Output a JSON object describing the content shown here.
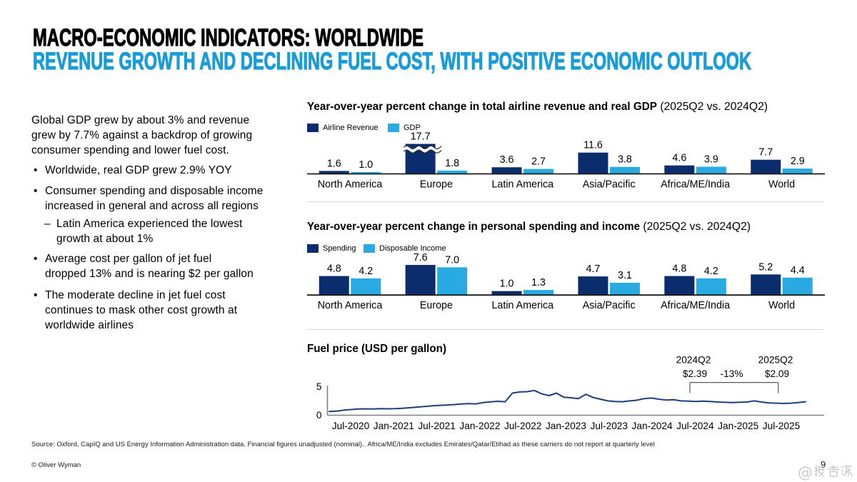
{
  "slide": {
    "title_line1": "MACRO-ECONOMIC INDICATORS: WORLDWIDE",
    "title_line2": "REVENUE GROWTH AND DECLINING FUEL COST, WITH POSITIVE ECONOMIC OUTLOOK",
    "page_number": "9",
    "copyright": "© Oliver Wyman",
    "source_note": "Source: Oxford, CapIQ and US Energy Information Administration data. Financial figures unadjusted (nominal).. Africa/ME/India excludes Emirates/Qatar/Etihad as these carriers do not report at quarterly level",
    "watermark": "@报告派"
  },
  "left_panel": {
    "intro": "Global GDP grew by about 3% and revenue\ngrew by 7.7% against a backdrop of growing\nconsumer spending and lower fuel cost.",
    "bullets": [
      {
        "level": 1,
        "text": "Worldwide, real GDP grew 2.9% YOY"
      },
      {
        "level": 1,
        "text": "Consumer spending and disposable income\nincreased in general and across all regions"
      },
      {
        "level": 2,
        "text": "Latin America experienced the lowest\ngrowth at about 1%"
      },
      {
        "level": 1,
        "text": "Average cost per gallon of jet fuel\ndropped 13% and is nearing $2 per gallon"
      },
      {
        "level": 1,
        "text": "The moderate decline in jet fuel cost\ncontinues to mask other cost growth at\nworldwide airlines"
      }
    ]
  },
  "colors": {
    "navy": "#0b2d6d",
    "light_blue": "#29abe2",
    "subtitle_blue": "#1a9cd8",
    "line_series": "#1f3e7d",
    "bar_axis": "#1a1a1a",
    "fuel_axis": "#808080",
    "bracket": "#595959",
    "separator": "#d9d9d9",
    "watermark": "#c9c9c9"
  },
  "chart_data": [
    {
      "type": "bar",
      "title_bold": "Year-over-year percent change in total airline revenue and real GDP",
      "title_regular": " (2025Q2 vs. 2024Q2)",
      "categories": [
        "North America",
        "Europe",
        "Latin America",
        "Asia/Pacific",
        "Africa/ME/India",
        "World"
      ],
      "series": [
        {
          "name": "Airline Revenue",
          "color_key": "navy",
          "values": [
            1.6,
            17.7,
            3.6,
            11.6,
            4.6,
            7.7
          ]
        },
        {
          "name": "GDP",
          "color_key": "light_blue",
          "values": [
            1.0,
            1.8,
            2.7,
            3.8,
            3.9,
            2.9
          ]
        }
      ],
      "axis_break": {
        "series": 0,
        "category_index": 1,
        "note": "Europe Airline Revenue bar truncated with break marks"
      },
      "ylim_note": "values are percent change"
    },
    {
      "type": "bar",
      "title_bold": "Year-over-year percent change in personal spending and income",
      "title_regular": " (2025Q2 vs. 2024Q2)",
      "categories": [
        "North America",
        "Europe",
        "Latin America",
        "Asia/Pacific",
        "Africa/ME/India",
        "World"
      ],
      "series": [
        {
          "name": "Spending",
          "color_key": "navy",
          "values": [
            4.8,
            7.6,
            1.0,
            4.7,
            4.8,
            5.2
          ]
        },
        {
          "name": "Disposable Income",
          "color_key": "light_blue",
          "values": [
            4.2,
            7.0,
            1.3,
            3.1,
            4.2,
            4.4
          ]
        }
      ]
    },
    {
      "type": "line",
      "title_bold": "Fuel price (USD per gallon)",
      "ylabel_ticks": [
        "0",
        "5"
      ],
      "ylim": [
        0,
        5
      ],
      "x_tick_labels": [
        "Jul-2020",
        "Jan-2021",
        "Jul-2021",
        "Jan-2022",
        "Jul-2022",
        "Jan-2023",
        "Jul-2023",
        "Jan-2024",
        "Jul-2024",
        "Jan-2025",
        "Jul-2025"
      ],
      "series_name": "Fuel price (USD per gallon)",
      "series_start_month": "Apr-2020",
      "values": [
        0.65,
        0.72,
        0.88,
        1.0,
        1.1,
        1.12,
        1.1,
        1.16,
        1.12,
        1.15,
        1.22,
        1.3,
        1.42,
        1.52,
        1.63,
        1.72,
        1.78,
        1.85,
        1.95,
        2.02,
        1.98,
        2.2,
        2.32,
        2.42,
        2.35,
        3.85,
        4.05,
        4.1,
        4.32,
        3.72,
        3.42,
        3.85,
        3.15,
        3.05,
        2.9,
        3.65,
        3.1,
        2.8,
        2.5,
        2.4,
        2.35,
        2.5,
        2.62,
        2.9,
        3.0,
        2.78,
        2.65,
        2.7,
        2.5,
        2.45,
        2.4,
        2.45,
        2.4,
        2.3,
        2.25,
        2.2,
        2.25,
        2.3,
        2.5,
        2.3,
        2.15,
        2.1,
        2.05,
        2.1,
        2.2,
        2.35
      ],
      "annotations": {
        "left_label": "2024Q2",
        "left_value": "$2.39",
        "change": "-13%",
        "right_label": "2025Q2",
        "right_value": "$2.09"
      }
    }
  ]
}
